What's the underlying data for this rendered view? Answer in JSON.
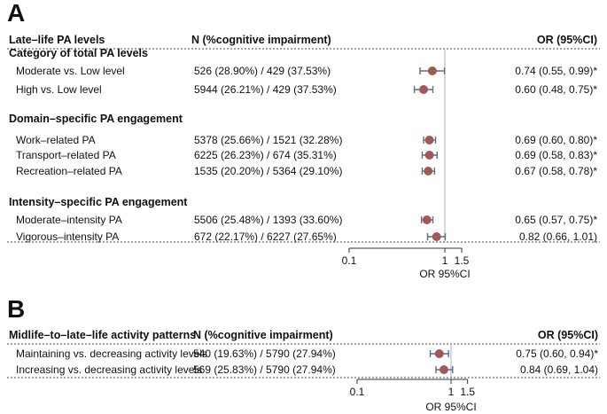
{
  "chart_data": [
    {
      "type": "forest",
      "panel": "A",
      "header": {
        "label_col": "Late–life PA levels",
        "n_col": "N (%cognitive impairment)",
        "or_col": "OR (95%CI)"
      },
      "xlabel": "OR 95%CI",
      "xscale": "log",
      "xticks": [
        "0.1",
        "1",
        "1.5"
      ],
      "xtick_values": [
        0.1,
        1,
        1.5
      ],
      "xlim": [
        0.1,
        1.5
      ],
      "reference_line": 1,
      "groups": [
        {
          "title": "Category of total PA levels",
          "rows": [
            {
              "label": "Moderate vs. Low level",
              "n": "526 (28.90%) / 429 (37.53%)",
              "or": 0.74,
              "lo": 0.55,
              "hi": 0.99,
              "or_text": "0.74 (0.55, 0.99)*"
            },
            {
              "label": "High vs. Low level",
              "n": "5944 (26.21%) / 429 (37.53%)",
              "or": 0.6,
              "lo": 0.48,
              "hi": 0.75,
              "or_text": "0.60 (0.48, 0.75)*"
            }
          ]
        },
        {
          "title": "Domain–specific PA engagement",
          "rows": [
            {
              "label": "Work–related PA",
              "n": "5378 (25.66%) / 1521 (32.28%)",
              "or": 0.69,
              "lo": 0.6,
              "hi": 0.8,
              "or_text": "0.69 (0.60, 0.80)*"
            },
            {
              "label": "Transport–related PA",
              "n": "6225 (26.23%) / 674 (35.31%)",
              "or": 0.69,
              "lo": 0.58,
              "hi": 0.83,
              "or_text": "0.69 (0.58, 0.83)*"
            },
            {
              "label": "Recreation–related PA",
              "n": "1535 (20.20%) / 5364 (29.10%)",
              "or": 0.67,
              "lo": 0.58,
              "hi": 0.78,
              "or_text": "0.67 (0.58, 0.78)*"
            }
          ]
        },
        {
          "title": "Intensity–specific PA engagement",
          "rows": [
            {
              "label": "Moderate–intensity PA",
              "n": "5506 (25.48%) / 1393 (33.60%)",
              "or": 0.65,
              "lo": 0.57,
              "hi": 0.75,
              "or_text": "0.65 (0.57, 0.75)*"
            },
            {
              "label": "Vigorous–intensity PA",
              "n": "672 (22.17%) / 6227 (27.65%)",
              "or": 0.82,
              "lo": 0.66,
              "hi": 1.01,
              "or_text": "0.82 (0.66, 1.01)"
            }
          ]
        }
      ]
    },
    {
      "type": "forest",
      "panel": "B",
      "header": {
        "label_col": "Midlife–to–late–life activity patterns",
        "n_col": "N (%cognitive impairment)",
        "or_col": "OR (95%CI)"
      },
      "xlabel": "OR 95%CI",
      "xscale": "log",
      "xticks": [
        "0.1",
        "1",
        "1.5"
      ],
      "xtick_values": [
        0.1,
        1,
        1.5
      ],
      "xlim": [
        0.1,
        1.5
      ],
      "reference_line": 1,
      "groups": [
        {
          "title": "",
          "rows": [
            {
              "label": "Maintaining vs. decreasing activity levels",
              "n": "540 (19.63%) / 5790 (27.94%)",
              "or": 0.75,
              "lo": 0.6,
              "hi": 0.94,
              "or_text": "0.75 (0.60, 0.94)*"
            },
            {
              "label": "Increasing vs. decreasing activity levels",
              "n": "569 (25.83%) / 5790 (27.94%)",
              "or": 0.84,
              "lo": 0.69,
              "hi": 1.04,
              "or_text": "0.84 (0.69, 1.04)"
            }
          ]
        }
      ]
    }
  ],
  "style": {
    "point_color": "#a0585a",
    "ci_color": "#5a6f82",
    "ref_line_color": "#b9c7cf",
    "axis_color": "#333333"
  }
}
